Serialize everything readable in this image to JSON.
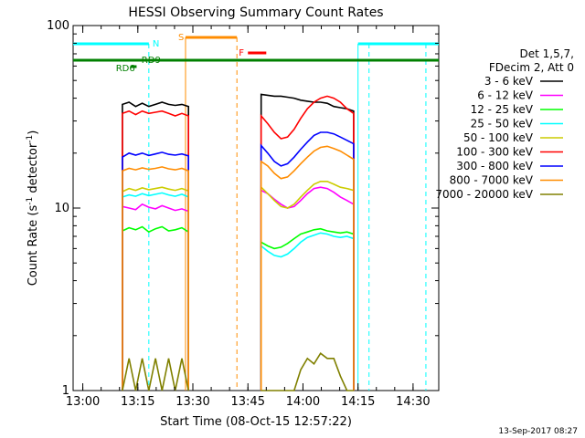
{
  "chart_data": {
    "type": "line",
    "title": "HESSI Observing Summary Count Rates",
    "xlabel": "Start Time (08-Oct-15 12:57:22)",
    "ylabel_parts": [
      "Count Rate (s",
      "-1",
      " detector",
      "-1",
      ")"
    ],
    "ylog": true,
    "ylim": [
      1,
      100
    ],
    "xlim": [
      "12:57:22",
      "14:37:00"
    ],
    "x_ticks": [
      "13:00",
      "13:15",
      "13:30",
      "13:45",
      "14:00",
      "14:15",
      "14:30"
    ],
    "y_ticks": [
      "1",
      "10",
      "100"
    ],
    "legend_header": [
      "Det 1,5,7,",
      "FDecim 2, Att 0"
    ],
    "legend_position": "right",
    "footer_date": "13-Sep-2017 08:27",
    "series": [
      {
        "name": "3 - 6 keV",
        "color": "#000000",
        "seg1": [
          [
            13.18,
            37
          ],
          [
            13.21,
            38
          ],
          [
            13.24,
            36
          ],
          [
            13.27,
            37.5
          ],
          [
            13.3,
            36
          ],
          [
            13.33,
            37
          ],
          [
            13.36,
            38
          ],
          [
            13.39,
            37
          ],
          [
            13.42,
            36.5
          ],
          [
            13.45,
            37
          ],
          [
            13.48,
            36
          ]
        ],
        "seg2": [
          [
            13.81,
            42
          ],
          [
            13.84,
            41.5
          ],
          [
            13.87,
            41
          ],
          [
            13.9,
            41
          ],
          [
            13.93,
            40.5
          ],
          [
            13.96,
            40
          ],
          [
            13.99,
            39
          ],
          [
            14.02,
            38.5
          ],
          [
            14.05,
            38
          ],
          [
            14.08,
            38
          ],
          [
            14.11,
            37.5
          ],
          [
            14.14,
            36
          ],
          [
            14.17,
            35.5
          ],
          [
            14.2,
            35
          ],
          [
            14.23,
            34
          ]
        ]
      },
      {
        "name": "6 - 12 keV",
        "color": "#ff00ff",
        "seg1": [
          [
            13.18,
            10.2
          ],
          [
            13.21,
            10
          ],
          [
            13.24,
            9.8
          ],
          [
            13.27,
            10.5
          ],
          [
            13.3,
            10.1
          ],
          [
            13.33,
            9.9
          ],
          [
            13.36,
            10.3
          ],
          [
            13.39,
            10
          ],
          [
            13.42,
            9.7
          ],
          [
            13.45,
            9.9
          ],
          [
            13.48,
            9.6
          ]
        ],
        "seg2": [
          [
            13.81,
            12.5
          ],
          [
            13.84,
            12
          ],
          [
            13.87,
            11.2
          ],
          [
            13.9,
            10.5
          ],
          [
            13.93,
            10
          ],
          [
            13.96,
            10.2
          ],
          [
            13.99,
            11
          ],
          [
            14.02,
            12
          ],
          [
            14.05,
            12.8
          ],
          [
            14.08,
            13
          ],
          [
            14.11,
            12.8
          ],
          [
            14.14,
            12.2
          ],
          [
            14.17,
            11.5
          ],
          [
            14.2,
            11
          ],
          [
            14.23,
            10.5
          ]
        ]
      },
      {
        "name": "12 - 25 keV",
        "color": "#00ff00",
        "seg1": [
          [
            13.18,
            7.5
          ],
          [
            13.21,
            7.8
          ],
          [
            13.24,
            7.6
          ],
          [
            13.27,
            7.9
          ],
          [
            13.3,
            7.4
          ],
          [
            13.33,
            7.7
          ],
          [
            13.36,
            7.9
          ],
          [
            13.39,
            7.5
          ],
          [
            13.42,
            7.6
          ],
          [
            13.45,
            7.8
          ],
          [
            13.48,
            7.4
          ]
        ],
        "seg2": [
          [
            13.81,
            6.5
          ],
          [
            13.84,
            6.2
          ],
          [
            13.87,
            6
          ],
          [
            13.9,
            6.1
          ],
          [
            13.93,
            6.4
          ],
          [
            13.96,
            6.8
          ],
          [
            13.99,
            7.2
          ],
          [
            14.02,
            7.4
          ],
          [
            14.05,
            7.6
          ],
          [
            14.08,
            7.7
          ],
          [
            14.11,
            7.5
          ],
          [
            14.14,
            7.4
          ],
          [
            14.17,
            7.3
          ],
          [
            14.2,
            7.4
          ],
          [
            14.23,
            7.2
          ]
        ]
      },
      {
        "name": "25 - 50 keV",
        "color": "#00ffff",
        "seg1": [
          [
            13.18,
            11.5
          ],
          [
            13.21,
            11.8
          ],
          [
            13.24,
            11.6
          ],
          [
            13.27,
            12
          ],
          [
            13.3,
            11.7
          ],
          [
            13.33,
            11.9
          ],
          [
            13.36,
            12.1
          ],
          [
            13.39,
            11.8
          ],
          [
            13.42,
            11.6
          ],
          [
            13.45,
            11.9
          ],
          [
            13.48,
            11.5
          ]
        ],
        "seg2": [
          [
            13.81,
            6.2
          ],
          [
            13.84,
            5.8
          ],
          [
            13.87,
            5.5
          ],
          [
            13.9,
            5.4
          ],
          [
            13.93,
            5.6
          ],
          [
            13.96,
            6
          ],
          [
            13.99,
            6.5
          ],
          [
            14.02,
            6.9
          ],
          [
            14.05,
            7.1
          ],
          [
            14.08,
            7.3
          ],
          [
            14.11,
            7.2
          ],
          [
            14.14,
            7
          ],
          [
            14.17,
            6.9
          ],
          [
            14.2,
            7
          ],
          [
            14.23,
            6.8
          ]
        ]
      },
      {
        "name": "50 - 100 keV",
        "color": "#cccc00",
        "seg1": [
          [
            13.18,
            12.3
          ],
          [
            13.21,
            12.8
          ],
          [
            13.24,
            12.5
          ],
          [
            13.27,
            12.9
          ],
          [
            13.3,
            12.6
          ],
          [
            13.33,
            12.8
          ],
          [
            13.36,
            13
          ],
          [
            13.39,
            12.7
          ],
          [
            13.42,
            12.5
          ],
          [
            13.45,
            12.8
          ],
          [
            13.48,
            12.4
          ]
        ],
        "seg2": [
          [
            13.81,
            13
          ],
          [
            13.84,
            12
          ],
          [
            13.87,
            11
          ],
          [
            13.9,
            10.2
          ],
          [
            13.93,
            10
          ],
          [
            13.96,
            10.5
          ],
          [
            13.99,
            11.5
          ],
          [
            14.02,
            12.5
          ],
          [
            14.05,
            13.5
          ],
          [
            14.08,
            14
          ],
          [
            14.11,
            14
          ],
          [
            14.14,
            13.5
          ],
          [
            14.17,
            13
          ],
          [
            14.2,
            12.8
          ],
          [
            14.23,
            12.5
          ]
        ]
      },
      {
        "name": "100 - 300 keV",
        "color": "#ff0000",
        "seg1": [
          [
            13.18,
            33
          ],
          [
            13.21,
            34
          ],
          [
            13.24,
            32.5
          ],
          [
            13.27,
            34
          ],
          [
            13.3,
            33
          ],
          [
            13.33,
            33.5
          ],
          [
            13.36,
            34
          ],
          [
            13.39,
            33
          ],
          [
            13.42,
            32
          ],
          [
            13.45,
            33
          ],
          [
            13.48,
            32
          ]
        ],
        "seg2": [
          [
            13.81,
            32
          ],
          [
            13.84,
            29
          ],
          [
            13.87,
            26
          ],
          [
            13.9,
            24
          ],
          [
            13.93,
            24.5
          ],
          [
            13.96,
            27
          ],
          [
            13.99,
            31
          ],
          [
            14.02,
            35
          ],
          [
            14.05,
            38
          ],
          [
            14.08,
            40
          ],
          [
            14.11,
            41
          ],
          [
            14.14,
            40
          ],
          [
            14.17,
            38
          ],
          [
            14.2,
            35
          ],
          [
            14.23,
            33
          ]
        ]
      },
      {
        "name": "300 - 800 keV",
        "color": "#0000ff",
        "seg1": [
          [
            13.18,
            19
          ],
          [
            13.21,
            20
          ],
          [
            13.24,
            19.5
          ],
          [
            13.27,
            20
          ],
          [
            13.3,
            19.4
          ],
          [
            13.33,
            19.8
          ],
          [
            13.36,
            20.2
          ],
          [
            13.39,
            19.7
          ],
          [
            13.42,
            19.5
          ],
          [
            13.45,
            19.8
          ],
          [
            13.48,
            19.3
          ]
        ],
        "seg2": [
          [
            13.81,
            22
          ],
          [
            13.84,
            20
          ],
          [
            13.87,
            18
          ],
          [
            13.9,
            17
          ],
          [
            13.93,
            17.5
          ],
          [
            13.96,
            19
          ],
          [
            13.99,
            21
          ],
          [
            14.02,
            23
          ],
          [
            14.05,
            25
          ],
          [
            14.08,
            26
          ],
          [
            14.11,
            26
          ],
          [
            14.14,
            25.5
          ],
          [
            14.17,
            24.5
          ],
          [
            14.2,
            23.5
          ],
          [
            14.23,
            22.5
          ]
        ]
      },
      {
        "name": "800 - 7000 keV",
        "color": "#ff8c00",
        "seg1": [
          [
            13.18,
            16
          ],
          [
            13.21,
            16.5
          ],
          [
            13.24,
            16.2
          ],
          [
            13.27,
            16.6
          ],
          [
            13.3,
            16.3
          ],
          [
            13.33,
            16.5
          ],
          [
            13.36,
            16.8
          ],
          [
            13.39,
            16.4
          ],
          [
            13.42,
            16.2
          ],
          [
            13.45,
            16.5
          ],
          [
            13.48,
            16
          ]
        ],
        "seg2": [
          [
            13.81,
            18
          ],
          [
            13.84,
            17
          ],
          [
            13.87,
            15.5
          ],
          [
            13.9,
            14.5
          ],
          [
            13.93,
            14.8
          ],
          [
            13.96,
            16
          ],
          [
            13.99,
            17.5
          ],
          [
            14.02,
            19
          ],
          [
            14.05,
            20.5
          ],
          [
            14.08,
            21.5
          ],
          [
            14.11,
            21.8
          ],
          [
            14.14,
            21.2
          ],
          [
            14.17,
            20.5
          ],
          [
            14.2,
            19.5
          ],
          [
            14.23,
            18.5
          ]
        ]
      },
      {
        "name": "7000 - 20000 keV",
        "color": "#808000",
        "seg1": [
          [
            13.18,
            1
          ],
          [
            13.21,
            1.5
          ],
          [
            13.24,
            1
          ],
          [
            13.27,
            1.5
          ],
          [
            13.3,
            1
          ],
          [
            13.33,
            1.5
          ],
          [
            13.36,
            1
          ],
          [
            13.39,
            1.5
          ],
          [
            13.42,
            1
          ],
          [
            13.45,
            1.5
          ],
          [
            13.48,
            1
          ]
        ],
        "seg2": [
          [
            13.81,
            1
          ],
          [
            13.84,
            1
          ],
          [
            13.87,
            1
          ],
          [
            13.9,
            1
          ],
          [
            13.93,
            1
          ],
          [
            13.96,
            1
          ],
          [
            13.99,
            1.3
          ],
          [
            14.02,
            1.5
          ],
          [
            14.05,
            1.4
          ],
          [
            14.08,
            1.6
          ],
          [
            14.11,
            1.5
          ],
          [
            14.14,
            1.5
          ],
          [
            14.17,
            1.2
          ],
          [
            14.2,
            1
          ],
          [
            14.23,
            1
          ]
        ]
      }
    ],
    "annotations": {
      "N": {
        "label": "N",
        "color": "#00ffff"
      },
      "S": {
        "label": "S",
        "color": "#ff8c00"
      },
      "F": {
        "label": "F",
        "color": "#ff0000"
      },
      "RD9": {
        "label": "RD9",
        "color": "#008000"
      },
      "RD6": {
        "label": "RD6",
        "color": "#008000"
      }
    }
  }
}
